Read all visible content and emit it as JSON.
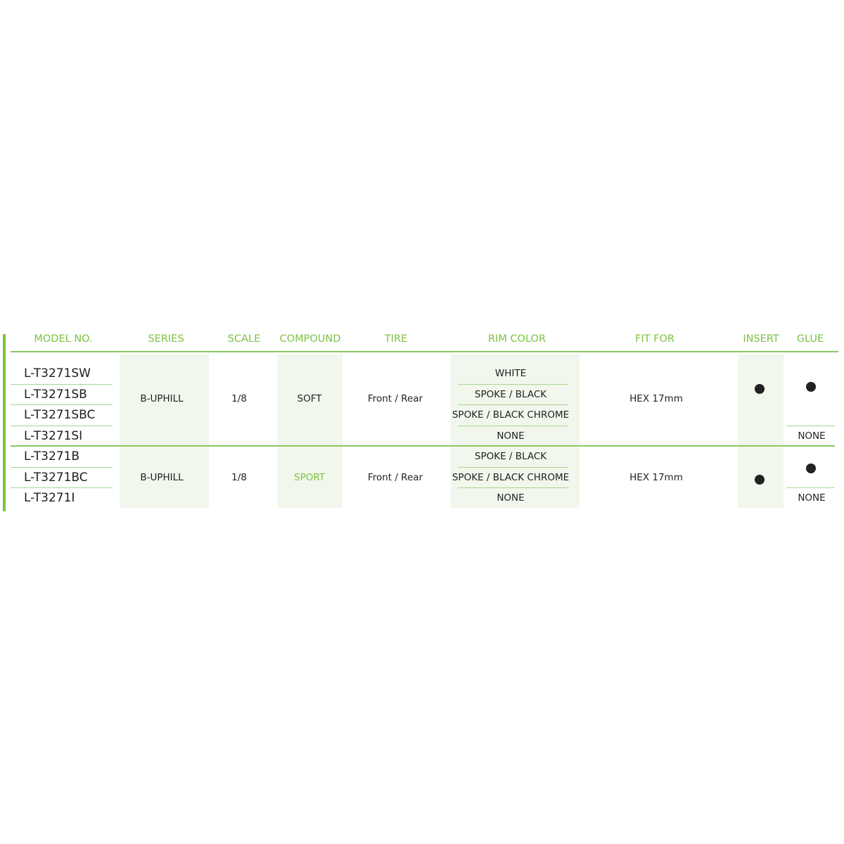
{
  "colors": {
    "accent": "#7dc242",
    "band": "#f1f7ec",
    "dot": "#222222"
  },
  "headers": {
    "model": "MODEL NO.",
    "series": "SERIES",
    "scale": "SCALE",
    "compound": "COMPOUND",
    "tire": "TIRE",
    "rim": "RIM COLOR",
    "fit": "FIT FOR",
    "insert": "INSERT",
    "glue": "GLUE"
  },
  "groups": [
    {
      "models": [
        "L-T3271SW",
        "L-T3271SB",
        "L-T3271SBC",
        "L-T3271SI"
      ],
      "series": "B-UPHILL",
      "scale": "1/8",
      "compound": "SOFT",
      "tire": "Front / Rear",
      "rim": [
        "WHITE",
        "SPOKE / BLACK",
        "SPOKE / BLACK CHROME",
        "NONE"
      ],
      "fit": "HEX 17mm",
      "insert": "dot-icon",
      "glue": [
        "dot-icon",
        "NONE"
      ]
    },
    {
      "models": [
        "L-T3271B",
        "L-T3271BC",
        "L-T3271I"
      ],
      "series": "B-UPHILL",
      "scale": "1/8",
      "compound": "SPORT",
      "tire": "Front / Rear",
      "rim": [
        "SPOKE / BLACK",
        "SPOKE / BLACK CHROME",
        "NONE"
      ],
      "fit": "HEX 17mm",
      "insert": "dot-icon",
      "glue": [
        "dot-icon",
        "NONE"
      ]
    }
  ]
}
